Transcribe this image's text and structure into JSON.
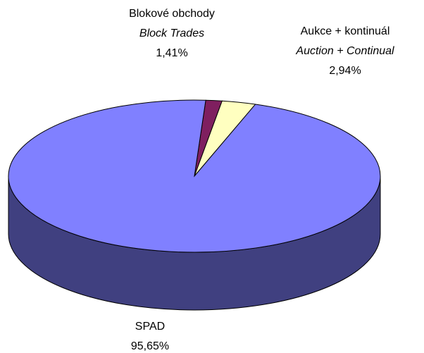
{
  "chart_data": {
    "type": "pie",
    "categories": [
      "Blokové obchody",
      "Aukce + kontinuál",
      "SPAD"
    ],
    "subtitles": [
      "Block Trades",
      "Auction + Continual",
      null
    ],
    "values": [
      1.41,
      2.94,
      95.65
    ],
    "value_labels": [
      "1,41%",
      "2,94%",
      "95,65%"
    ],
    "colors": [
      "#7f1f5f",
      "#ffffc0",
      "#8080ff"
    ]
  }
}
